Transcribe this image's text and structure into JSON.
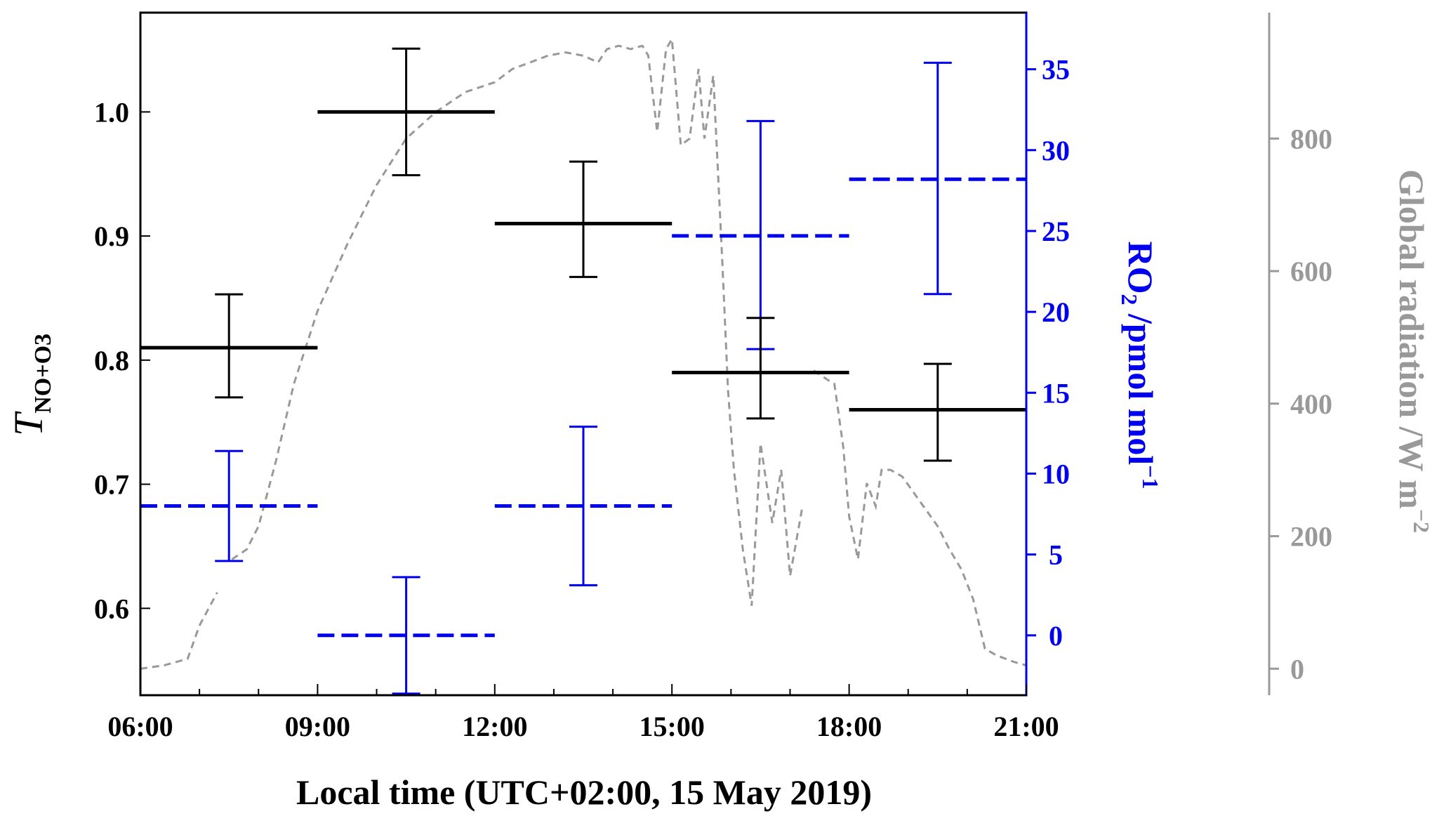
{
  "chart_data": {
    "type": "line",
    "title": "",
    "xlabel": "Local time (UTC+02:00, 15 May 2019)",
    "ylabel": {
      "main": "T",
      "sub": "NO+O3"
    },
    "y2label": {
      "pre": "RO",
      "sub": "2",
      "post": " /pmol mol",
      "sup": "−1"
    },
    "y3label": {
      "pre": "Global radiation /W m",
      "sup": "−2"
    },
    "x_ticks": [
      6,
      9,
      12,
      15,
      18,
      21
    ],
    "x_tick_labels": [
      "06:00",
      "09:00",
      "12:00",
      "15:00",
      "18:00",
      "21:00"
    ],
    "xlim": [
      6,
      21
    ],
    "ylim": [
      0.53,
      1.08
    ],
    "y_ticks": [
      0.6,
      0.7,
      0.8,
      0.9,
      1.0
    ],
    "y_tick_labels": [
      "0.6",
      "0.7",
      "0.8",
      "0.9",
      "1.0"
    ],
    "y2lim": [
      -3.7,
      38.5
    ],
    "y2_ticks": [
      0,
      5,
      10,
      15,
      20,
      25,
      30,
      35
    ],
    "y2_tick_labels": [
      "0",
      "5",
      "10",
      "15",
      "20",
      "25",
      "30",
      "35"
    ],
    "y3lim": [
      -40,
      990
    ],
    "y3_ticks": [
      0,
      200,
      400,
      600,
      800
    ],
    "y3_tick_labels": [
      "0",
      "200",
      "400",
      "600",
      "800"
    ],
    "colors": {
      "T": "#000000",
      "RO2": "#0000ee",
      "radiation": "#999999"
    },
    "series": [
      {
        "key": "T_NO_O3",
        "axis": "left",
        "x_start": [
          6,
          9,
          12,
          15,
          18
        ],
        "x_end": [
          9,
          12,
          15,
          18,
          21
        ],
        "x_center": [
          7.5,
          10.5,
          13.5,
          16.5,
          19.5
        ],
        "values": [
          0.81,
          1.0,
          0.91,
          0.79,
          0.76
        ],
        "err_low": [
          0.77,
          0.949,
          0.867,
          0.753,
          0.719
        ],
        "err_high": [
          0.853,
          1.051,
          0.96,
          0.834,
          0.797
        ]
      },
      {
        "key": "RO2",
        "axis": "right",
        "x_start": [
          6,
          9,
          12,
          15,
          18
        ],
        "x_end": [
          9,
          12,
          15,
          18,
          21
        ],
        "x_center": [
          7.5,
          10.5,
          13.5,
          16.5,
          19.5
        ],
        "values": [
          8.0,
          0.0,
          8.0,
          24.7,
          28.2
        ],
        "err_low": [
          4.6,
          -3.6,
          3.1,
          17.7,
          21.1
        ],
        "err_high": [
          11.4,
          3.6,
          12.9,
          31.8,
          35.4
        ]
      },
      {
        "key": "radiation",
        "axis": "far-right",
        "segments": [
          {
            "x": [
              6.0,
              6.4,
              6.8,
              7.0,
              7.3
            ],
            "values": [
              0,
              5,
              15,
              65,
              115
            ]
          },
          {
            "x": [
              7.55,
              7.8,
              8.0,
              8.3,
              8.6,
              9.0,
              9.5,
              10.0,
              10.5,
              11.0,
              11.5,
              12.0,
              12.3,
              12.6,
              12.9,
              13.2,
              13.5,
              13.75,
              13.9,
              14.1,
              14.3,
              14.5,
              14.6,
              14.75,
              14.9,
              15.0,
              15.15,
              15.3,
              15.45,
              15.55,
              15.7,
              15.85,
              15.95,
              16.05,
              16.2,
              16.35,
              16.5,
              16.7,
              16.85,
              17.0,
              17.2
            ],
            "values": [
              165,
              180,
              215,
              315,
              430,
              540,
              640,
              730,
              800,
              840,
              870,
              885,
              905,
              915,
              925,
              930,
              925,
              915,
              935,
              940,
              935,
              940,
              925,
              810,
              935,
              950,
              790,
              800,
              905,
              800,
              895,
              620,
              420,
              300,
              180,
              95,
              340,
              220,
              300,
              140,
              240
            ]
          },
          {
            "x": [
              17.4,
              17.65,
              17.75,
              17.9,
              18.0,
              18.15,
              18.3,
              18.45,
              18.55,
              18.7,
              18.9,
              19.1,
              19.3,
              19.5,
              19.7,
              19.9,
              20.1,
              20.3,
              20.5,
              20.8,
              21.0
            ],
            "values": [
              450,
              435,
              430,
              335,
              230,
              165,
              280,
              245,
              300,
              300,
              290,
              265,
              240,
              215,
              180,
              150,
              105,
              30,
              20,
              10,
              5
            ]
          }
        ]
      }
    ]
  }
}
